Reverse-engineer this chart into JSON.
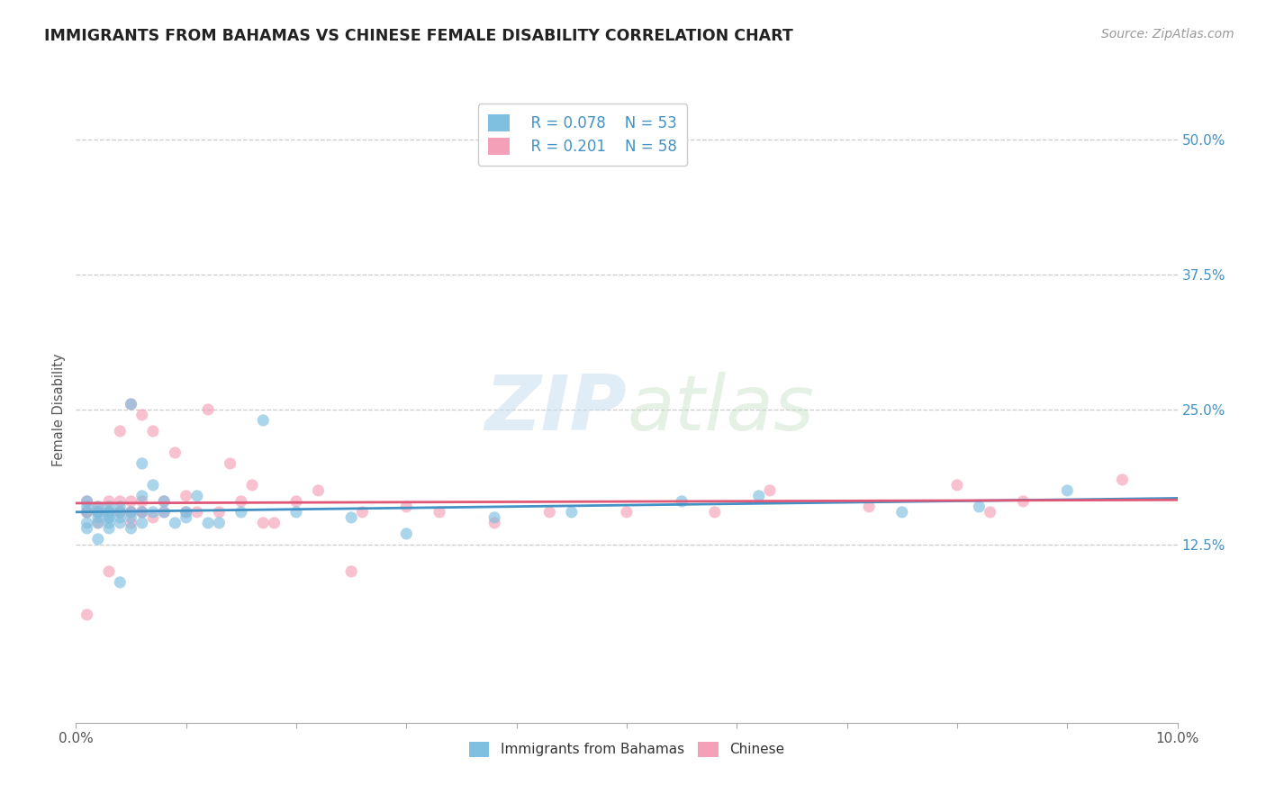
{
  "title": "IMMIGRANTS FROM BAHAMAS VS CHINESE FEMALE DISABILITY CORRELATION CHART",
  "source": "Source: ZipAtlas.com",
  "ylabel": "Female Disability",
  "xlim": [
    0.0,
    0.1
  ],
  "ylim": [
    -0.04,
    0.54
  ],
  "right_ytick_labels": [
    "12.5%",
    "25.0%",
    "37.5%",
    "50.0%"
  ],
  "right_ytick_values": [
    0.125,
    0.25,
    0.375,
    0.5
  ],
  "xtick_values": [
    0.0,
    0.01,
    0.02,
    0.03,
    0.04,
    0.05,
    0.06,
    0.07,
    0.08,
    0.09,
    0.1
  ],
  "xtick_labels": [
    "0.0%",
    "",
    "",
    "",
    "",
    "",
    "",
    "",
    "",
    "",
    "10.0%"
  ],
  "series1_color": "#7fbfdf",
  "series2_color": "#f4a0b8",
  "series1_line_color": "#4292c6",
  "series2_line_color": "#e05878",
  "legend_r1": "R = 0.078",
  "legend_n1": "N = 53",
  "legend_r2": "R = 0.201",
  "legend_n2": "N = 58",
  "legend_label1": "Immigrants from Bahamas",
  "legend_label2": "Chinese",
  "watermark_zip": "ZIP",
  "watermark_atlas": "atlas",
  "grid_color": "#cccccc",
  "background_color": "#ffffff",
  "series1_x": [
    0.001,
    0.001,
    0.001,
    0.001,
    0.001,
    0.002,
    0.002,
    0.002,
    0.002,
    0.002,
    0.002,
    0.003,
    0.003,
    0.003,
    0.003,
    0.003,
    0.003,
    0.003,
    0.004,
    0.004,
    0.004,
    0.004,
    0.004,
    0.005,
    0.005,
    0.005,
    0.005,
    0.006,
    0.006,
    0.006,
    0.006,
    0.007,
    0.007,
    0.008,
    0.008,
    0.009,
    0.01,
    0.01,
    0.011,
    0.012,
    0.013,
    0.015,
    0.017,
    0.02,
    0.025,
    0.03,
    0.038,
    0.045,
    0.055,
    0.062,
    0.075,
    0.082,
    0.09
  ],
  "series1_y": [
    0.165,
    0.155,
    0.145,
    0.16,
    0.14,
    0.155,
    0.16,
    0.145,
    0.15,
    0.155,
    0.13,
    0.155,
    0.15,
    0.16,
    0.145,
    0.155,
    0.14,
    0.15,
    0.155,
    0.16,
    0.145,
    0.15,
    0.09,
    0.155,
    0.14,
    0.15,
    0.255,
    0.155,
    0.145,
    0.2,
    0.17,
    0.18,
    0.155,
    0.165,
    0.155,
    0.145,
    0.155,
    0.15,
    0.17,
    0.145,
    0.145,
    0.155,
    0.24,
    0.155,
    0.15,
    0.135,
    0.15,
    0.155,
    0.165,
    0.17,
    0.155,
    0.16,
    0.175
  ],
  "series2_x": [
    0.001,
    0.001,
    0.001,
    0.001,
    0.002,
    0.002,
    0.002,
    0.002,
    0.003,
    0.003,
    0.003,
    0.003,
    0.003,
    0.004,
    0.004,
    0.004,
    0.004,
    0.004,
    0.005,
    0.005,
    0.005,
    0.005,
    0.005,
    0.006,
    0.006,
    0.006,
    0.006,
    0.007,
    0.007,
    0.008,
    0.008,
    0.009,
    0.01,
    0.01,
    0.011,
    0.012,
    0.013,
    0.014,
    0.015,
    0.016,
    0.017,
    0.018,
    0.02,
    0.022,
    0.025,
    0.026,
    0.03,
    0.033,
    0.038,
    0.043,
    0.05,
    0.058,
    0.063,
    0.072,
    0.08,
    0.083,
    0.086,
    0.095
  ],
  "series2_y": [
    0.165,
    0.155,
    0.06,
    0.155,
    0.155,
    0.16,
    0.145,
    0.155,
    0.155,
    0.1,
    0.165,
    0.155,
    0.155,
    0.155,
    0.23,
    0.155,
    0.165,
    0.155,
    0.255,
    0.155,
    0.145,
    0.165,
    0.155,
    0.245,
    0.165,
    0.155,
    0.155,
    0.23,
    0.15,
    0.155,
    0.165,
    0.21,
    0.155,
    0.17,
    0.155,
    0.25,
    0.155,
    0.2,
    0.165,
    0.18,
    0.145,
    0.145,
    0.165,
    0.175,
    0.1,
    0.155,
    0.16,
    0.155,
    0.145,
    0.155,
    0.155,
    0.155,
    0.175,
    0.16,
    0.18,
    0.155,
    0.165,
    0.185
  ]
}
